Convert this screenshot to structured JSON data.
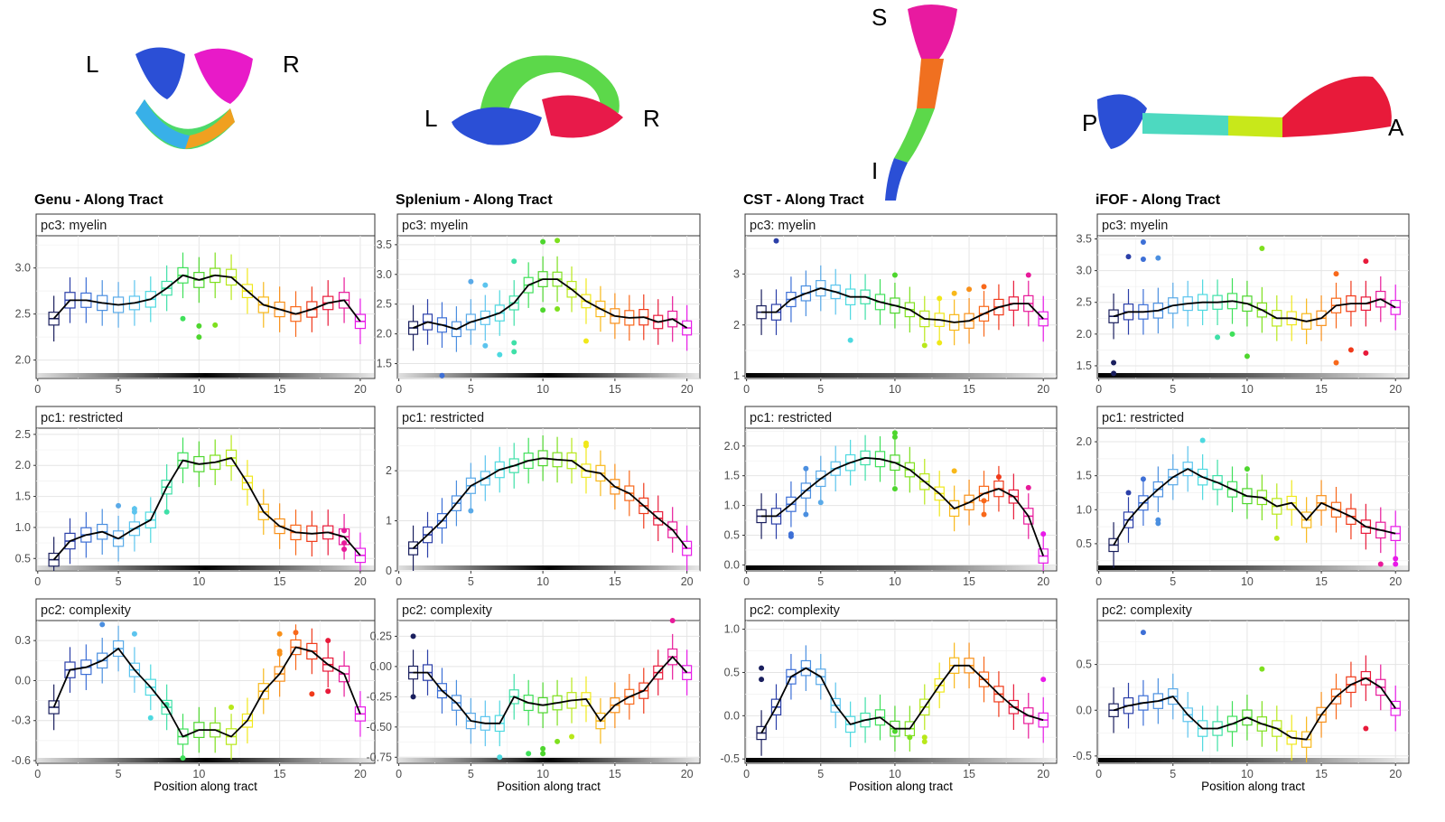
{
  "figure": {
    "xlabel": "Position along tract",
    "tracts": [
      {
        "name": "Genu",
        "title": "Genu - Along Tract",
        "orient": [
          "L",
          "R"
        ]
      },
      {
        "name": "Splenium",
        "title": "Splenium - Along Tract",
        "orient": [
          "L",
          "R"
        ]
      },
      {
        "name": "CST",
        "title": "CST - Along Tract",
        "orient": [
          "S",
          "I"
        ]
      },
      {
        "name": "iFOF",
        "title": "iFOF - Along Tract",
        "orient": [
          "P",
          "A"
        ]
      }
    ],
    "rows": [
      "pc3: myelin",
      "pc1: restricted",
      "pc2: complexity"
    ],
    "position_colors": [
      "#1a1f5e",
      "#2b3fa8",
      "#3d6fd6",
      "#4b8fe0",
      "#5aaae8",
      "#5cc4ee",
      "#4dd9e0",
      "#3fe0a8",
      "#3fe05a",
      "#4ed62e",
      "#7ee01e",
      "#b8e81a",
      "#f0e81a",
      "#f8b81a",
      "#f8901a",
      "#f8681a",
      "#f03a1a",
      "#e81a3a",
      "#e81a9a",
      "#e81ae8"
    ],
    "mean_line_color": "#000000"
  },
  "chart_data": [
    {
      "type": "box",
      "tract": "Genu",
      "panel": "pc3: myelin",
      "x": [
        1,
        2,
        3,
        4,
        5,
        6,
        7,
        8,
        9,
        10,
        11,
        12,
        13,
        14,
        15,
        16,
        17,
        18,
        19,
        20
      ],
      "median": [
        2.45,
        2.65,
        2.65,
        2.62,
        2.6,
        2.62,
        2.66,
        2.78,
        2.92,
        2.87,
        2.92,
        2.9,
        2.75,
        2.6,
        2.55,
        2.5,
        2.55,
        2.62,
        2.65,
        2.42
      ],
      "ylim": [
        1.8,
        3.35
      ],
      "yticks": [
        2.0,
        2.5,
        3.0
      ],
      "outliers": [
        [
          9,
          2.45
        ],
        [
          10,
          2.37
        ],
        [
          10,
          2.25
        ],
        [
          11,
          2.38
        ]
      ]
    },
    {
      "type": "box",
      "tract": "Genu",
      "panel": "pc1: restricted",
      "x": [
        1,
        2,
        3,
        4,
        5,
        6,
        7,
        8,
        9,
        10,
        11,
        12,
        13,
        14,
        15,
        16,
        17,
        18,
        19,
        20
      ],
      "median": [
        0.48,
        0.78,
        0.88,
        0.93,
        0.82,
        0.98,
        1.12,
        1.65,
        2.08,
        2.02,
        2.05,
        2.12,
        1.72,
        1.25,
        1.02,
        0.92,
        0.9,
        0.92,
        0.85,
        0.55
      ],
      "ylim": [
        0.3,
        2.6
      ],
      "yticks": [
        0.5,
        1.0,
        1.5,
        2.0,
        2.5
      ],
      "outliers": [
        [
          5,
          1.35
        ],
        [
          6,
          1.3
        ],
        [
          6,
          1.25
        ],
        [
          8,
          1.25
        ],
        [
          19,
          0.95
        ],
        [
          19,
          0.75
        ],
        [
          19,
          0.65
        ]
      ]
    },
    {
      "type": "box",
      "tract": "Genu",
      "panel": "pc2: complexity",
      "x": [
        1,
        2,
        3,
        4,
        5,
        6,
        7,
        8,
        9,
        10,
        11,
        12,
        13,
        14,
        15,
        16,
        17,
        18,
        19,
        20
      ],
      "median": [
        -0.2,
        0.08,
        0.1,
        0.15,
        0.24,
        0.08,
        -0.05,
        -0.2,
        -0.42,
        -0.37,
        -0.37,
        -0.42,
        -0.3,
        -0.08,
        0.05,
        0.25,
        0.22,
        0.12,
        0.05,
        -0.25
      ],
      "ylim": [
        -0.62,
        0.45
      ],
      "yticks": [
        -0.6,
        -0.3,
        0.0,
        0.3
      ],
      "outliers": [
        [
          4,
          0.42
        ],
        [
          6,
          0.35
        ],
        [
          8,
          -0.18
        ],
        [
          7,
          -0.28
        ],
        [
          9,
          -0.58
        ],
        [
          12,
          -0.2
        ],
        [
          15,
          0.2
        ],
        [
          15,
          0.22
        ],
        [
          15,
          0.35
        ],
        [
          16,
          0.36
        ],
        [
          17,
          -0.1
        ],
        [
          18,
          0.3
        ],
        [
          18,
          -0.08
        ]
      ]
    },
    {
      "type": "box",
      "tract": "Splenium",
      "panel": "pc3: myelin",
      "x": [
        1,
        2,
        3,
        4,
        5,
        6,
        7,
        8,
        9,
        10,
        11,
        12,
        13,
        14,
        15,
        16,
        17,
        18,
        19,
        20
      ],
      "median": [
        2.1,
        2.2,
        2.15,
        2.08,
        2.2,
        2.27,
        2.35,
        2.52,
        2.82,
        2.92,
        2.92,
        2.75,
        2.55,
        2.42,
        2.3,
        2.27,
        2.28,
        2.2,
        2.25,
        2.1
      ],
      "ylim": [
        1.25,
        3.65
      ],
      "yticks": [
        1.5,
        2.0,
        2.5,
        3.0,
        3.5
      ],
      "outliers": [
        [
          3,
          1.3
        ],
        [
          5,
          2.88
        ],
        [
          6,
          2.82
        ],
        [
          6,
          1.8
        ],
        [
          7,
          1.65
        ],
        [
          8,
          3.22
        ],
        [
          8,
          1.85
        ],
        [
          8,
          1.7
        ],
        [
          10,
          3.55
        ],
        [
          11,
          3.57
        ],
        [
          10,
          2.4
        ],
        [
          11,
          2.42
        ],
        [
          13,
          1.88
        ]
      ]
    },
    {
      "type": "box",
      "tract": "Splenium",
      "panel": "pc1: restricted",
      "x": [
        1,
        2,
        3,
        4,
        5,
        6,
        7,
        8,
        9,
        10,
        11,
        12,
        13,
        14,
        15,
        16,
        17,
        18,
        19,
        20
      ],
      "median": [
        0.45,
        0.72,
        1.0,
        1.35,
        1.7,
        1.85,
        2.02,
        2.1,
        2.2,
        2.25,
        2.22,
        2.2,
        2.0,
        1.95,
        1.68,
        1.55,
        1.3,
        1.05,
        0.82,
        0.45
      ],
      "ylim": [
        0.0,
        2.85
      ],
      "yticks": [
        0,
        1,
        2
      ],
      "outliers": [
        [
          5,
          1.2
        ],
        [
          13,
          2.5
        ],
        [
          13,
          2.55
        ]
      ]
    },
    {
      "type": "box",
      "tract": "Splenium",
      "panel": "pc2: complexity",
      "x": [
        1,
        2,
        3,
        4,
        5,
        6,
        7,
        8,
        9,
        10,
        11,
        12,
        13,
        14,
        15,
        16,
        17,
        18,
        19,
        20
      ],
      "median": [
        -0.05,
        -0.05,
        -0.2,
        -0.3,
        -0.45,
        -0.47,
        -0.47,
        -0.25,
        -0.3,
        -0.32,
        -0.3,
        -0.28,
        -0.27,
        -0.45,
        -0.32,
        -0.25,
        -0.2,
        -0.05,
        0.08,
        -0.05
      ],
      "ylim": [
        -0.8,
        0.38
      ],
      "yticks": [
        -0.75,
        -0.5,
        -0.25,
        0.0,
        0.25
      ],
      "outliers": [
        [
          1,
          0.25
        ],
        [
          1,
          -0.25
        ],
        [
          7,
          -0.75
        ],
        [
          9,
          -0.72
        ],
        [
          10,
          -0.68
        ],
        [
          10,
          -0.72
        ],
        [
          11,
          -0.62
        ],
        [
          12,
          -0.58
        ],
        [
          19,
          0.38
        ]
      ]
    },
    {
      "type": "box",
      "tract": "CST",
      "panel": "pc3: myelin",
      "x": [
        1,
        2,
        3,
        4,
        5,
        6,
        7,
        8,
        9,
        10,
        11,
        12,
        13,
        14,
        15,
        16,
        17,
        18,
        19,
        20
      ],
      "median": [
        2.25,
        2.25,
        2.5,
        2.62,
        2.72,
        2.65,
        2.55,
        2.55,
        2.45,
        2.38,
        2.3,
        2.12,
        2.1,
        2.05,
        2.08,
        2.22,
        2.35,
        2.42,
        2.42,
        2.12
      ],
      "ylim": [
        0.95,
        3.75
      ],
      "yticks": [
        1,
        2,
        3
      ],
      "outliers": [
        [
          2,
          3.65
        ],
        [
          7,
          1.7
        ],
        [
          10,
          2.98
        ],
        [
          12,
          1.6
        ],
        [
          13,
          1.65
        ],
        [
          13,
          2.52
        ],
        [
          14,
          2.62
        ],
        [
          15,
          2.7
        ],
        [
          16,
          2.75
        ],
        [
          19,
          2.98
        ]
      ]
    },
    {
      "type": "box",
      "tract": "CST",
      "panel": "pc1: restricted",
      "x": [
        1,
        2,
        3,
        4,
        5,
        6,
        7,
        8,
        9,
        10,
        11,
        12,
        13,
        14,
        15,
        16,
        17,
        18,
        19,
        20
      ],
      "median": [
        0.82,
        0.82,
        1.02,
        1.25,
        1.45,
        1.62,
        1.72,
        1.8,
        1.78,
        1.72,
        1.6,
        1.4,
        1.2,
        0.95,
        1.05,
        1.2,
        1.28,
        1.15,
        0.82,
        0.15
      ],
      "ylim": [
        -0.1,
        2.3
      ],
      "yticks": [
        0.0,
        0.5,
        1.0,
        1.5,
        2.0
      ],
      "outliers": [
        [
          3,
          0.52
        ],
        [
          3,
          0.48
        ],
        [
          4,
          1.62
        ],
        [
          5,
          1.05
        ],
        [
          4,
          0.85
        ],
        [
          10,
          2.22
        ],
        [
          10,
          2.15
        ],
        [
          10,
          1.28
        ],
        [
          14,
          1.58
        ],
        [
          16,
          1.08
        ],
        [
          17,
          1.48
        ],
        [
          16,
          0.85
        ],
        [
          19,
          1.3
        ],
        [
          20,
          0.52
        ]
      ]
    },
    {
      "type": "box",
      "tract": "CST",
      "panel": "pc2: complexity",
      "x": [
        1,
        2,
        3,
        4,
        5,
        6,
        7,
        8,
        9,
        10,
        11,
        12,
        13,
        14,
        15,
        16,
        17,
        18,
        19,
        20
      ],
      "median": [
        -0.2,
        0.1,
        0.45,
        0.55,
        0.45,
        0.12,
        -0.1,
        -0.05,
        -0.02,
        -0.15,
        -0.15,
        0.1,
        0.35,
        0.58,
        0.58,
        0.42,
        0.25,
        0.1,
        0.0,
        -0.05
      ],
      "ylim": [
        -0.55,
        1.1
      ],
      "yticks": [
        -0.5,
        0.0,
        0.5,
        1.0
      ],
      "outliers": [
        [
          1,
          0.55
        ],
        [
          1,
          0.42
        ],
        [
          10,
          -0.18
        ],
        [
          11,
          -0.25
        ],
        [
          12,
          -0.25
        ],
        [
          12,
          -0.3
        ],
        [
          20,
          0.42
        ]
      ]
    },
    {
      "type": "box",
      "tract": "iFOF",
      "panel": "pc3: myelin",
      "x": [
        1,
        2,
        3,
        4,
        5,
        6,
        7,
        8,
        9,
        10,
        11,
        12,
        13,
        14,
        15,
        16,
        17,
        18,
        19,
        20
      ],
      "median": [
        2.28,
        2.35,
        2.35,
        2.37,
        2.45,
        2.48,
        2.5,
        2.5,
        2.52,
        2.48,
        2.38,
        2.25,
        2.25,
        2.2,
        2.25,
        2.45,
        2.48,
        2.48,
        2.55,
        2.42
      ],
      "ylim": [
        1.3,
        3.55
      ],
      "yticks": [
        1.5,
        2.0,
        2.5,
        3.0,
        3.5
      ],
      "outliers": [
        [
          1,
          1.55
        ],
        [
          1,
          1.38
        ],
        [
          2,
          3.22
        ],
        [
          3,
          3.45
        ],
        [
          3,
          3.18
        ],
        [
          4,
          3.2
        ],
        [
          8,
          1.95
        ],
        [
          9,
          2.0
        ],
        [
          10,
          1.65
        ],
        [
          11,
          3.35
        ],
        [
          16,
          2.95
        ],
        [
          16,
          1.55
        ],
        [
          17,
          1.75
        ],
        [
          18,
          3.15
        ],
        [
          18,
          1.7
        ]
      ]
    },
    {
      "type": "box",
      "tract": "iFOF",
      "panel": "pc1: restricted",
      "x": [
        1,
        2,
        3,
        4,
        5,
        6,
        7,
        8,
        9,
        10,
        11,
        12,
        13,
        14,
        15,
        16,
        17,
        18,
        19,
        20
      ],
      "median": [
        0.48,
        0.85,
        1.1,
        1.3,
        1.48,
        1.6,
        1.48,
        1.4,
        1.3,
        1.2,
        1.18,
        1.05,
        1.1,
        0.85,
        1.1,
        1.0,
        0.9,
        0.75,
        0.7,
        0.65
      ],
      "ylim": [
        0.1,
        2.2
      ],
      "yticks": [
        0.5,
        1.0,
        1.5,
        2.0
      ],
      "outliers": [
        [
          2,
          1.25
        ],
        [
          3,
          1.45
        ],
        [
          4,
          0.8
        ],
        [
          4,
          0.85
        ],
        [
          7,
          2.02
        ],
        [
          10,
          1.6
        ],
        [
          12,
          0.58
        ],
        [
          19,
          0.2
        ],
        [
          20,
          0.2
        ],
        [
          20,
          0.28
        ]
      ]
    },
    {
      "type": "box",
      "tract": "iFOF",
      "panel": "pc2: complexity",
      "x": [
        1,
        2,
        3,
        4,
        5,
        6,
        7,
        8,
        9,
        10,
        11,
        12,
        13,
        14,
        15,
        16,
        17,
        18,
        19,
        20
      ],
      "median": [
        0.0,
        0.05,
        0.08,
        0.1,
        0.15,
        -0.05,
        -0.2,
        -0.2,
        -0.15,
        -0.08,
        -0.15,
        -0.2,
        -0.3,
        -0.32,
        -0.05,
        0.15,
        0.28,
        0.35,
        0.25,
        0.02
      ],
      "ylim": [
        -0.58,
        0.98
      ],
      "yticks": [
        -0.5,
        0.0,
        0.5
      ],
      "outliers": [
        [
          3,
          0.85
        ],
        [
          11,
          0.45
        ],
        [
          18,
          -0.2
        ]
      ]
    }
  ]
}
